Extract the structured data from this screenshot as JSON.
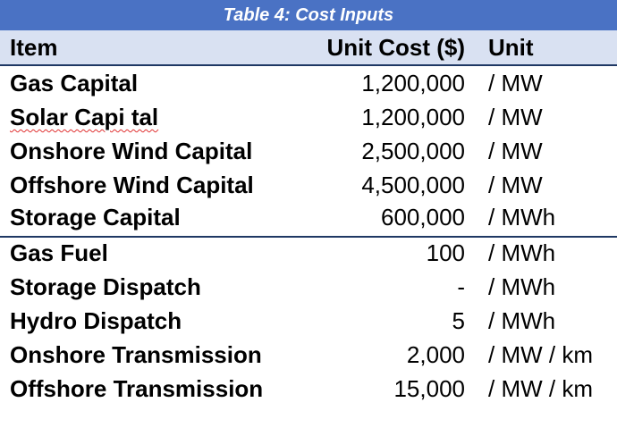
{
  "title": "Table 4: Cost Inputs",
  "columns": {
    "item": "Item",
    "cost": "Unit Cost ($)",
    "unit": "Unit"
  },
  "rows": [
    {
      "item": "Gas Capital",
      "cost": "1,200,000",
      "unit": "/ MW"
    },
    {
      "item": "Solar Capi tal",
      "cost": "1,200,000",
      "unit": "/ MW"
    },
    {
      "item": "Onshore Wind Capital",
      "cost": "2,500,000",
      "unit": "/ MW"
    },
    {
      "item": "Offshore Wind Capital",
      "cost": "4,500,000",
      "unit": "/ MW"
    },
    {
      "item": "Storage Capital",
      "cost": "600,000",
      "unit": "/ MWh"
    },
    {
      "item": "Gas Fuel",
      "cost": "100",
      "unit": "/ MWh"
    },
    {
      "item": "Storage Dispatch",
      "cost": "-",
      "unit": "/ MWh"
    },
    {
      "item": "Hydro Dispatch",
      "cost": "5",
      "unit": "/ MWh"
    },
    {
      "item": "Onshore Transmission",
      "cost": "2,000",
      "unit": "/ MW / km"
    },
    {
      "item": "Offshore Transmission",
      "cost": "15,000",
      "unit": "/ MW / km"
    }
  ],
  "colors": {
    "title_background": "#4a72c4",
    "header_background": "#d9e1f2",
    "rule": "#1f3864",
    "spellcheck_underline": "#e03030"
  }
}
